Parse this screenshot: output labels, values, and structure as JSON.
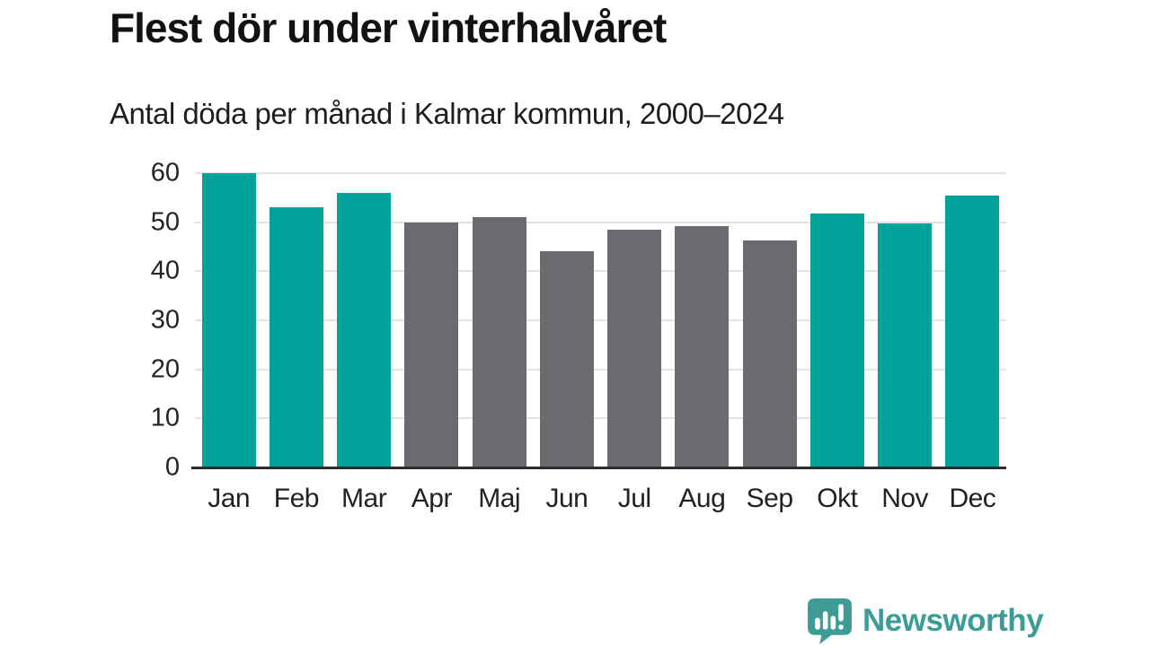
{
  "chart_data": {
    "type": "bar",
    "title": "Flest dör under vinterhalvåret",
    "subtitle": "Antal döda per månad i Kalmar kommun, 2000–2024",
    "categories": [
      "Jan",
      "Feb",
      "Mar",
      "Apr",
      "Maj",
      "Jun",
      "Jul",
      "Aug",
      "Sep",
      "Okt",
      "Nov",
      "Dec"
    ],
    "values": [
      60,
      53,
      56,
      50,
      51,
      44,
      48.4,
      49.2,
      46.3,
      51.7,
      49.8,
      55.5
    ],
    "bar_colors": [
      "#00a29a",
      "#00a29a",
      "#00a29a",
      "#6b6a70",
      "#6b6a70",
      "#6b6a70",
      "#6b6a70",
      "#6b6a70",
      "#6b6a70",
      "#00a29a",
      "#00a29a",
      "#00a29a"
    ],
    "highlight_color": "#00a29a",
    "muted_color": "#6b6a70",
    "xlabel": "",
    "ylabel": "",
    "ylim": [
      0,
      60
    ],
    "yticks": [
      0,
      10,
      20,
      30,
      40,
      50,
      60
    ],
    "grid": true,
    "gridline_color": "#e3e3e3",
    "axis_line_color": "#2d2d2d",
    "legend": "none"
  },
  "footer": {
    "brand": "Newsworthy",
    "brand_color": "#3d9c96",
    "logo_icon": "bar-chart-speech-bubble-icon"
  }
}
